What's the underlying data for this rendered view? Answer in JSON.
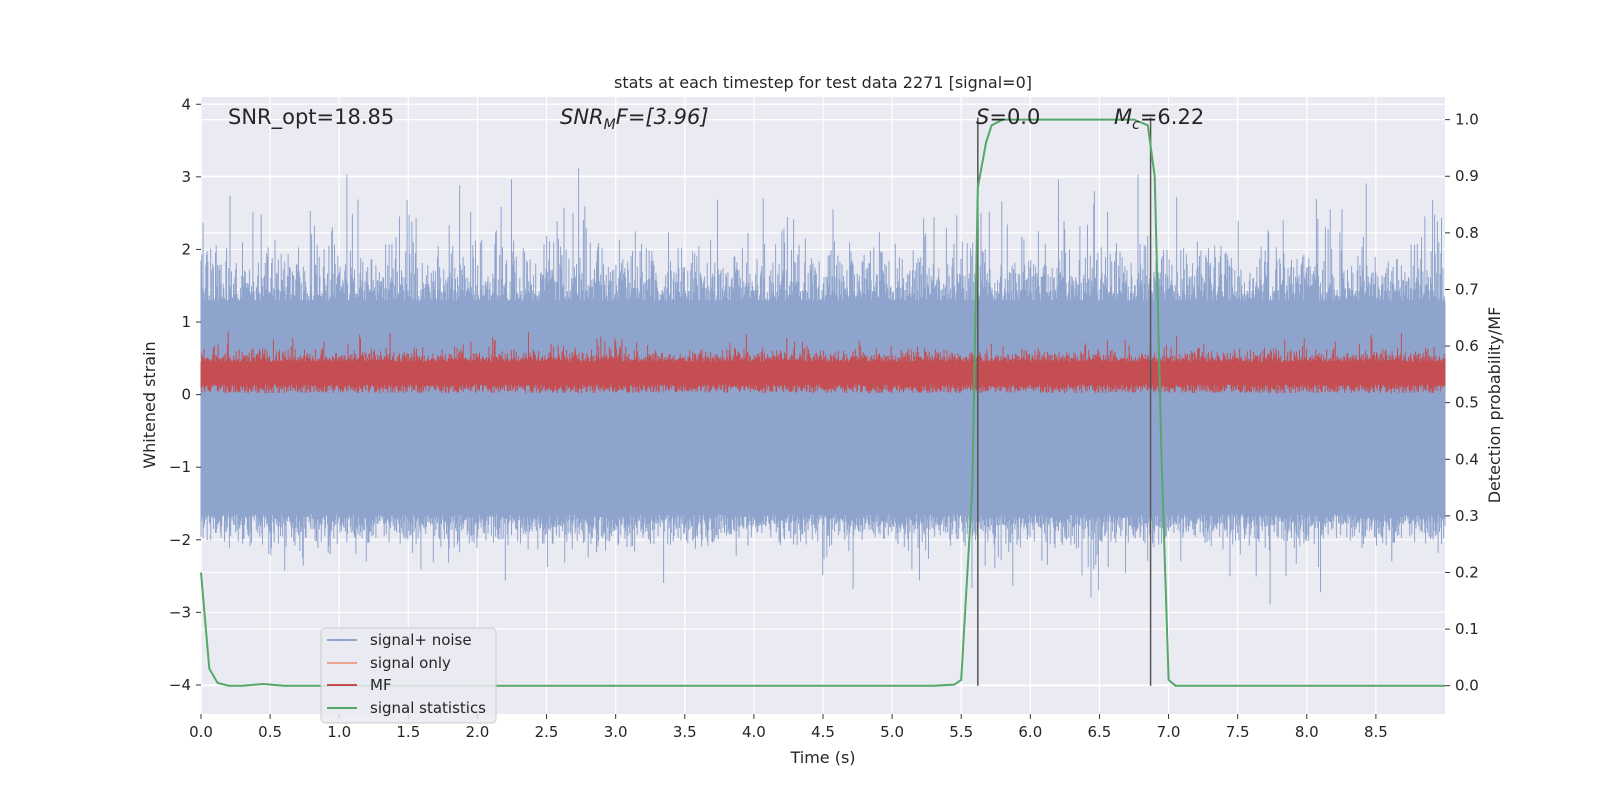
{
  "chart_data": {
    "type": "line",
    "title": "stats at each timestep for test data 2271 [signal=0]",
    "xlabel": "Time (s)",
    "ylabel": "Whitened strain",
    "y2label": "Detection probability/MF",
    "xlim": [
      0,
      9.0
    ],
    "ylim": [
      -4.4,
      4.1
    ],
    "y2lim": [
      -0.05,
      1.04
    ],
    "x_ticks": [
      0.0,
      0.5,
      1.0,
      1.5,
      2.0,
      2.5,
      3.0,
      3.5,
      4.0,
      4.5,
      5.0,
      5.5,
      6.0,
      6.5,
      7.0,
      7.5,
      8.0,
      8.5
    ],
    "x_tick_labels": [
      "0.0",
      "0.5",
      "1.0",
      "1.5",
      "2.0",
      "2.5",
      "3.0",
      "3.5",
      "4.0",
      "4.5",
      "5.0",
      "5.5",
      "6.0",
      "6.5",
      "7.0",
      "7.5",
      "8.0",
      "8.5"
    ],
    "y_ticks": [
      4,
      3,
      2,
      1,
      0,
      -1,
      -2,
      -3,
      -4
    ],
    "y_tick_labels": [
      "4",
      "3",
      "2",
      "1",
      "0",
      "−1",
      "−2",
      "−3",
      "−4"
    ],
    "y2_ticks": [
      1.0,
      0.9,
      0.8,
      0.7,
      0.6,
      0.5,
      0.4,
      0.3,
      0.2,
      0.1,
      0.0
    ],
    "y2_tick_labels": [
      "1.0",
      "0.9",
      "0.8",
      "0.7",
      "0.6",
      "0.5",
      "0.4",
      "0.3",
      "0.2",
      "0.1",
      "0.0"
    ],
    "grid": true,
    "legend_position": "lower-left",
    "series": [
      {
        "name": "signal+ noise",
        "color": "#8fa4cc",
        "description": "dense noise roughly between -2.5 and 3.6"
      },
      {
        "name": "signal only",
        "color": "#e8a48c",
        "values": []
      },
      {
        "name": "MF",
        "color": "#c44e52",
        "description": "dense band roughly between 0.0 and 1.0"
      },
      {
        "name": "signal statistics",
        "color": "#55a868",
        "axis": "right",
        "x": [
          0.0,
          0.06,
          0.12,
          0.2,
          0.3,
          0.45,
          0.6,
          1.0,
          2.0,
          3.0,
          4.0,
          5.0,
          5.3,
          5.45,
          5.5,
          5.58,
          5.62,
          5.68,
          5.72,
          5.8,
          6.0,
          6.5,
          6.75,
          6.85,
          6.9,
          6.95,
          7.0,
          7.05,
          7.1,
          7.3,
          8.0,
          9.0
        ],
        "values": [
          0.2,
          0.03,
          0.005,
          0.0,
          0.0,
          0.003,
          0.0,
          0.0,
          0.0,
          0.0,
          0.0,
          0.0,
          0.0,
          0.002,
          0.01,
          0.35,
          0.88,
          0.96,
          0.99,
          1.0,
          1.0,
          1.0,
          1.0,
          0.99,
          0.9,
          0.4,
          0.01,
          0.0,
          0.0,
          0.0,
          0.0,
          0.0
        ]
      }
    ],
    "vlines_x": [
      5.62,
      6.87
    ],
    "annotations": [
      {
        "text": "SNR_opt=18.85"
      },
      {
        "text": "F=[3.96]",
        "math_prefix": "SNR",
        "math_sub": "M"
      },
      {
        "text": "=0.0",
        "math_prefix": "S"
      },
      {
        "text": "=6.22",
        "math_prefix": "M",
        "math_sub": "c"
      }
    ],
    "colors": {
      "plot_bg": "#eaeaf2",
      "grid": "#ffffff",
      "vline": "#555555",
      "legend_border": "#cccccc"
    }
  }
}
